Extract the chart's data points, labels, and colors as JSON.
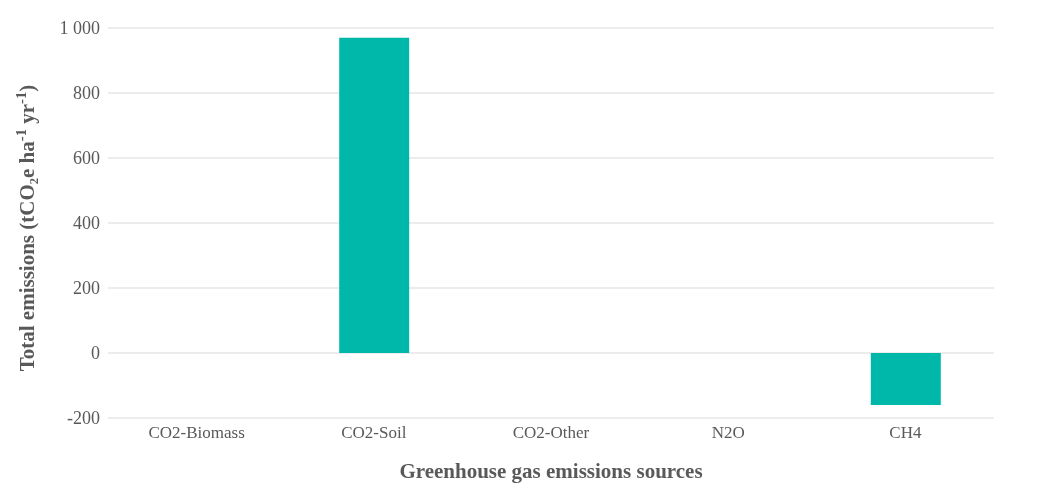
{
  "chart_data": {
    "type": "bar",
    "xlabel": "Greenhouse gas emissions sources",
    "ylabel": "Total emissions (tCO₂e ha$^{-1}$ yr$^{-1}$)",
    "categories": [
      "CO2-Biomass",
      "CO2-Soil",
      "CO2-Other",
      "N2O",
      "CH4"
    ],
    "values": [
      0,
      970,
      0,
      0,
      -160
    ],
    "color": "#00b8a9",
    "ylim": [
      -200,
      1000
    ],
    "yticks": [
      -200,
      0,
      200,
      400,
      600,
      800,
      {
        "value": 1000,
        "label": "1 000"
      }
    ],
    "grid": "y"
  }
}
